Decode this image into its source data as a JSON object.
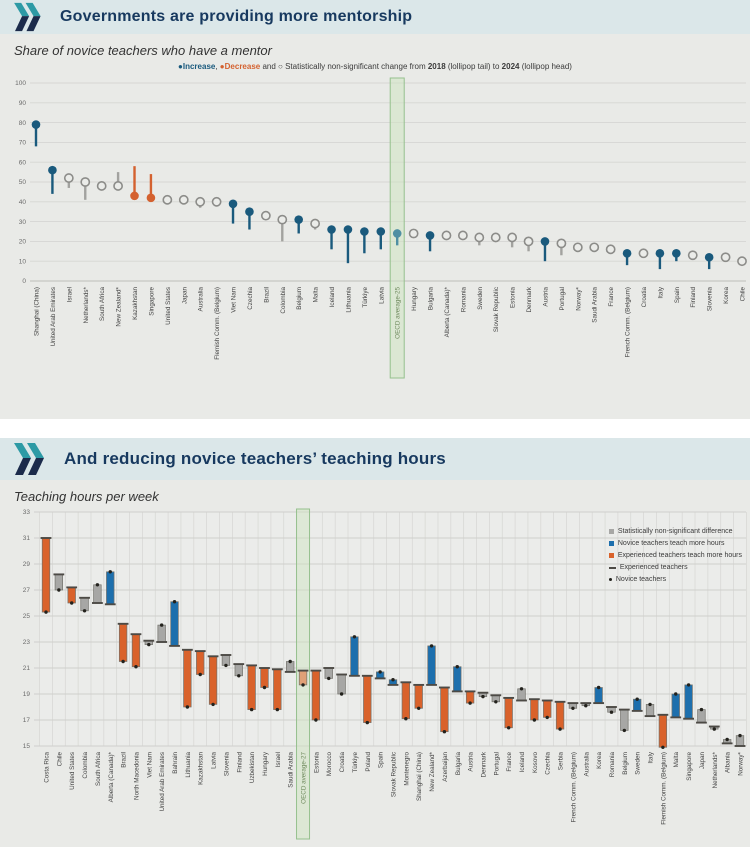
{
  "panel1": {
    "title": "Governments are providing more mentorship",
    "subtitle": "Share of novice teachers who have a mentor",
    "legend": {
      "increase_symbol": "●",
      "increase_label": "Increase",
      "sep": ", ",
      "decrease_symbol": "●",
      "decrease_label": "Decrease",
      "and_text": " and ",
      "nonsig_symbol": "○",
      "nonsig_text": " Statistically non-significant change from ",
      "tail_year": "2018",
      "tail_note": " (lollipop tail) to ",
      "head_year": "2024",
      "head_note": " (lollipop head)"
    }
  },
  "panel2": {
    "title": "And reducing novice teachers’ teaching hours",
    "subtitle": "Teaching hours per week",
    "legend_items": [
      {
        "symbol": "square",
        "color": "#a7a7a5",
        "label": "Statistically non-significant difference"
      },
      {
        "symbol": "square",
        "color": "#1d6fad",
        "label": "Novice teachers teach more hours"
      },
      {
        "symbol": "square",
        "color": "#d9622b",
        "label": "Experienced teachers teach more hours"
      },
      {
        "symbol": "dash",
        "color": "#4c4a45",
        "label": "Experienced teachers"
      },
      {
        "symbol": "dot",
        "color": "#23221d",
        "label": "Novice teachers"
      }
    ]
  },
  "colors": {
    "increase": "#1a5a7d",
    "decrease": "#d4612f",
    "nonsig_stem": "#a2a29f",
    "nonsig_ring": "#8c8c89",
    "nonsig_fill": "#ebece9",
    "highlight_lollipop": "#4f8fa3",
    "bar_novice_more": "#1d6fad",
    "bar_experienced_more": "#d9622b",
    "bar_nonsig": "#a7a7a5",
    "bar_highlight_muted": "#e0a077",
    "bar_stroke": "#73726c",
    "experienced_marker": "#4c4a45",
    "novice_marker": "#23221d",
    "band_fill": "#cfe4c2",
    "band_stroke": "#95c08d",
    "grid": "#d6d6d3",
    "tick_text": "#6b6b6b",
    "label_text": "#454545",
    "highlight_label": "#6f8a5e",
    "plot_bg": "#ebecea"
  },
  "chart_data": [
    {
      "type": "lollipop",
      "title": "Governments are providing more mentorship",
      "subtitle": "Share of novice teachers who have a mentor",
      "legend": "Increase, Decrease and Statistically non-significant change from 2018 (lollipop tail) to 2024 (lollipop head)",
      "ylim": [
        0,
        100
      ],
      "ytick_step": 10,
      "grid": true,
      "highlight_category": "OECD average-25",
      "categories": [
        "Shanghai (China)",
        "United Arab Emirates",
        "Israel",
        "Netherlands*",
        "South Africa",
        "New Zealand*",
        "Kazakhstan",
        "Singapore",
        "United States",
        "Japan",
        "Australia",
        "Flemish Comm. (Belgium)",
        "Viet Nam",
        "Czechia",
        "Brazil",
        "Colombia",
        "Belgium",
        "Malta",
        "Iceland",
        "Lithuania",
        "Türkiye",
        "Latvia",
        "OECD average-25",
        "Hungary",
        "Bulgaria",
        "Alberta (Canada)*",
        "Romania",
        "Sweden",
        "Slovak Republic",
        "Estonia",
        "Denmark",
        "Austria",
        "Portugal",
        "Norway*",
        "Saudi Arabia",
        "France",
        "French Comm. (Belgium)",
        "Croatia",
        "Italy",
        "Spain",
        "Finland",
        "Slovenia",
        "Korea",
        "Chile"
      ],
      "series": [
        {
          "name": "2024 (lollipop head)",
          "values": [
            79,
            56,
            52,
            50,
            48,
            48,
            43,
            42,
            41,
            41,
            40,
            40,
            39,
            35,
            33,
            31,
            31,
            29,
            26,
            26,
            25,
            25,
            24,
            24,
            23,
            23,
            23,
            22,
            22,
            22,
            20,
            20,
            19,
            17,
            17,
            16,
            14,
            14,
            14,
            14,
            13,
            12,
            12,
            10
          ]
        },
        {
          "name": "2018 (lollipop tail)",
          "values": [
            68,
            44,
            47,
            41,
            47,
            55,
            58,
            54,
            42,
            40,
            37,
            42,
            29,
            26,
            32,
            20,
            24,
            26,
            16,
            9,
            14,
            16,
            18,
            25,
            15,
            24,
            22,
            18,
            21,
            17,
            15,
            10,
            13,
            16,
            18,
            15,
            8,
            15,
            6,
            10,
            15,
            6,
            13,
            12
          ]
        }
      ],
      "change": [
        "increase",
        "increase",
        "nonsig",
        "nonsig",
        "nonsig",
        "nonsig",
        "decrease",
        "decrease",
        "nonsig",
        "nonsig",
        "nonsig",
        "nonsig",
        "increase",
        "increase",
        "nonsig",
        "nonsig",
        "increase",
        "nonsig",
        "increase",
        "increase",
        "increase",
        "increase",
        "increase",
        "nonsig",
        "increase",
        "nonsig",
        "nonsig",
        "nonsig",
        "nonsig",
        "nonsig",
        "nonsig",
        "increase",
        "nonsig",
        "nonsig",
        "nonsig",
        "nonsig",
        "increase",
        "nonsig",
        "increase",
        "increase",
        "nonsig",
        "increase",
        "nonsig",
        "nonsig"
      ]
    },
    {
      "type": "bar",
      "variant": "floating-range",
      "title": "And reducing novice teachers’ teaching hours",
      "subtitle": "Teaching hours per week",
      "ylim": [
        15,
        33
      ],
      "ytick_step": 2,
      "grid": true,
      "legend_position": "top-right",
      "highlight_category": "OECD average-27",
      "categories": [
        "Costa Rica",
        "Chile",
        "United States",
        "Colombia",
        "South Africa",
        "Alberta (Canada)*",
        "Brazil",
        "North Macedonia",
        "Viet Nam",
        "United Arab Emirates",
        "Bahrain",
        "Lithuania",
        "Kazakhstan",
        "Latvia",
        "Slovenia",
        "Finland",
        "Uzbekistan",
        "Hungary",
        "Israel",
        "Saudi Arabia",
        "OECD average-27",
        "Estonia",
        "Morocco",
        "Croatia",
        "Türkiye",
        "Poland",
        "Spain",
        "Slovak Republic",
        "Montenegro",
        "Shanghai (China)",
        "New Zealand*",
        "Azerbaijan",
        "Bulgaria",
        "Austria",
        "Denmark",
        "Portugal",
        "France",
        "Iceland",
        "Kosovo",
        "Czechia",
        "Serbia",
        "French Comm. (Belgium)",
        "Australia",
        "Korea",
        "Romania",
        "Belgium",
        "Sweden",
        "Italy",
        "Flemish Comm. (Belgium)",
        "Malta",
        "Singapore",
        "Japan",
        "Netherlands*",
        "Albania",
        "Norway*"
      ],
      "series": [
        {
          "name": "Experienced teachers",
          "values": [
            31.0,
            28.2,
            27.2,
            26.4,
            26.0,
            25.9,
            24.4,
            23.6,
            23.1,
            23.0,
            22.7,
            22.4,
            22.3,
            21.9,
            22.0,
            21.3,
            21.2,
            21.0,
            20.9,
            20.7,
            20.8,
            20.8,
            21.0,
            20.5,
            20.4,
            20.4,
            20.2,
            19.7,
            19.9,
            19.7,
            19.7,
            19.5,
            19.2,
            19.2,
            19.1,
            18.9,
            18.7,
            18.5,
            18.6,
            18.5,
            18.4,
            18.3,
            18.3,
            18.3,
            18.0,
            17.8,
            17.7,
            17.3,
            17.4,
            17.2,
            17.1,
            16.8,
            16.5,
            15.2,
            15.0
          ]
        },
        {
          "name": "Novice teachers",
          "values": [
            25.3,
            27.0,
            26.0,
            25.4,
            27.4,
            28.4,
            21.5,
            21.1,
            22.8,
            24.3,
            26.1,
            18.0,
            20.5,
            18.2,
            21.2,
            20.4,
            17.8,
            19.5,
            17.8,
            21.5,
            19.7,
            17.0,
            20.2,
            19.0,
            23.4,
            16.8,
            20.7,
            20.1,
            17.1,
            17.9,
            22.7,
            16.1,
            21.1,
            18.3,
            18.8,
            18.4,
            16.4,
            19.4,
            17.0,
            17.2,
            16.3,
            17.9,
            18.1,
            19.5,
            17.6,
            16.2,
            18.6,
            18.2,
            14.9,
            19.0,
            19.7,
            17.8,
            16.3,
            15.5,
            15.8
          ]
        }
      ],
      "difference": [
        "experienced_more",
        "nonsig",
        "experienced_more",
        "nonsig",
        "nonsig",
        "novice_more",
        "experienced_more",
        "experienced_more",
        "nonsig",
        "nonsig",
        "novice_more",
        "experienced_more",
        "experienced_more",
        "experienced_more",
        "nonsig",
        "nonsig",
        "experienced_more",
        "experienced_more",
        "experienced_more",
        "nonsig",
        "experienced_more",
        "experienced_more",
        "nonsig",
        "nonsig",
        "novice_more",
        "experienced_more",
        "novice_more",
        "novice_more",
        "experienced_more",
        "experienced_more",
        "novice_more",
        "experienced_more",
        "novice_more",
        "experienced_more",
        "nonsig",
        "nonsig",
        "experienced_more",
        "nonsig",
        "experienced_more",
        "experienced_more",
        "experienced_more",
        "nonsig",
        "nonsig",
        "novice_more",
        "nonsig",
        "nonsig",
        "novice_more",
        "nonsig",
        "experienced_more",
        "novice_more",
        "novice_more",
        "nonsig",
        "nonsig",
        "nonsig",
        "nonsig"
      ]
    }
  ]
}
